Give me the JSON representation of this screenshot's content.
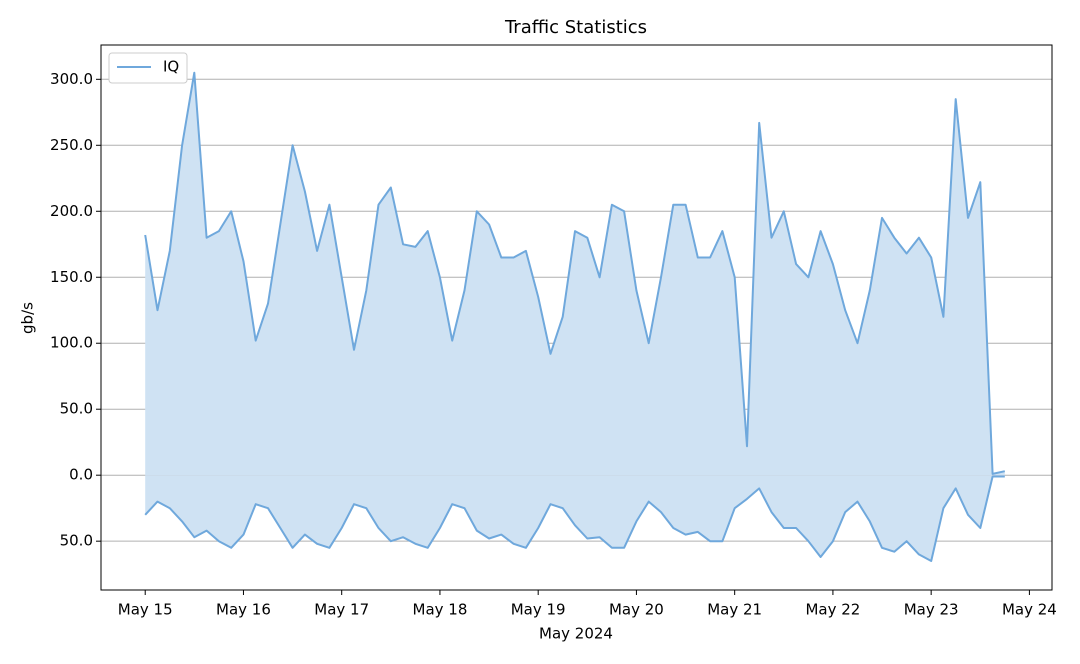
{
  "chart_data": {
    "type": "area",
    "title": "Traffic Statistics",
    "ylabel": "gb/s",
    "xlabel": "May 2024",
    "x": [
      15,
      15.125,
      15.25,
      15.375,
      15.5,
      15.625,
      15.75,
      15.875,
      16,
      16.125,
      16.25,
      16.375,
      16.5,
      16.625,
      16.75,
      16.875,
      17,
      17.125,
      17.25,
      17.375,
      17.5,
      17.625,
      17.75,
      17.875,
      18,
      18.125,
      18.25,
      18.375,
      18.5,
      18.625,
      18.75,
      18.875,
      19,
      19.125,
      19.25,
      19.375,
      19.5,
      19.625,
      19.75,
      19.875,
      20,
      20.125,
      20.25,
      20.375,
      20.5,
      20.625,
      20.75,
      20.875,
      21,
      21.125,
      21.25,
      21.375,
      21.5,
      21.625,
      21.75,
      21.875,
      22,
      22.125,
      22.25,
      22.375,
      22.5,
      22.625,
      22.75,
      22.875,
      23,
      23.125,
      23.25,
      23.375,
      23.5,
      23.625,
      23.75
    ],
    "series": [
      {
        "name": "IQ",
        "color": "#6fa8dc",
        "values": [
          182,
          125,
          170,
          250,
          305,
          180,
          185,
          200,
          162,
          102,
          130,
          190,
          250,
          215,
          170,
          205,
          150,
          95,
          140,
          205,
          218,
          175,
          173,
          185,
          150,
          102,
          140,
          200,
          190,
          165,
          165,
          170,
          135,
          92,
          120,
          185,
          180,
          150,
          205,
          200,
          140,
          100,
          150,
          205,
          205,
          165,
          165,
          185,
          150,
          22,
          267,
          180,
          200,
          160,
          150,
          185,
          160,
          125,
          100,
          140,
          195,
          180,
          168,
          180,
          165,
          120,
          285,
          195,
          222,
          1,
          3
        ]
      },
      {
        "color": "#6fa8dc",
        "values": [
          -30,
          -20,
          -25,
          -35,
          -47,
          -42,
          -50,
          -55,
          -45,
          -22,
          -25,
          -40,
          -55,
          -45,
          -52,
          -55,
          -40,
          -22,
          -25,
          -40,
          -50,
          -47,
          -52,
          -55,
          -40,
          -22,
          -25,
          -42,
          -48,
          -45,
          -52,
          -55,
          -40,
          -22,
          -25,
          -38,
          -48,
          -47,
          -55,
          -55,
          -35,
          -20,
          -28,
          -40,
          -45,
          -43,
          -50,
          -50,
          -25,
          -18,
          -10,
          -28,
          -40,
          -40,
          -50,
          -62,
          -50,
          -28,
          -20,
          -35,
          -55,
          -58,
          -50,
          -60,
          -65,
          -25,
          -10,
          -30,
          -40,
          -1,
          -1
        ]
      }
    ],
    "fill": "#cfe2f3",
    "xlim": [
      14.55,
      24.23
    ],
    "xticks": [
      {
        "value": 15,
        "label": "May 15"
      },
      {
        "value": 16,
        "label": "May 16"
      },
      {
        "value": 17,
        "label": "May 17"
      },
      {
        "value": 18,
        "label": "May 18"
      },
      {
        "value": 19,
        "label": "May 19"
      },
      {
        "value": 20,
        "label": "May 20"
      },
      {
        "value": 21,
        "label": "May 21"
      },
      {
        "value": 22,
        "label": "May 22"
      },
      {
        "value": 23,
        "label": "May 23"
      },
      {
        "value": 24,
        "label": "May 24"
      }
    ],
    "ylim": [
      -87,
      326
    ],
    "yticks": [
      {
        "value": -50,
        "label": "50.0"
      },
      {
        "value": 0,
        "label": "0.0"
      },
      {
        "value": 50,
        "label": "50.0"
      },
      {
        "value": 100,
        "label": "100.0"
      },
      {
        "value": 150,
        "label": "150.0"
      },
      {
        "value": 200,
        "label": "200.0"
      },
      {
        "value": 250,
        "label": "250.0"
      },
      {
        "value": 300,
        "label": "300.0"
      }
    ],
    "grid": true,
    "legend": "upper left"
  }
}
